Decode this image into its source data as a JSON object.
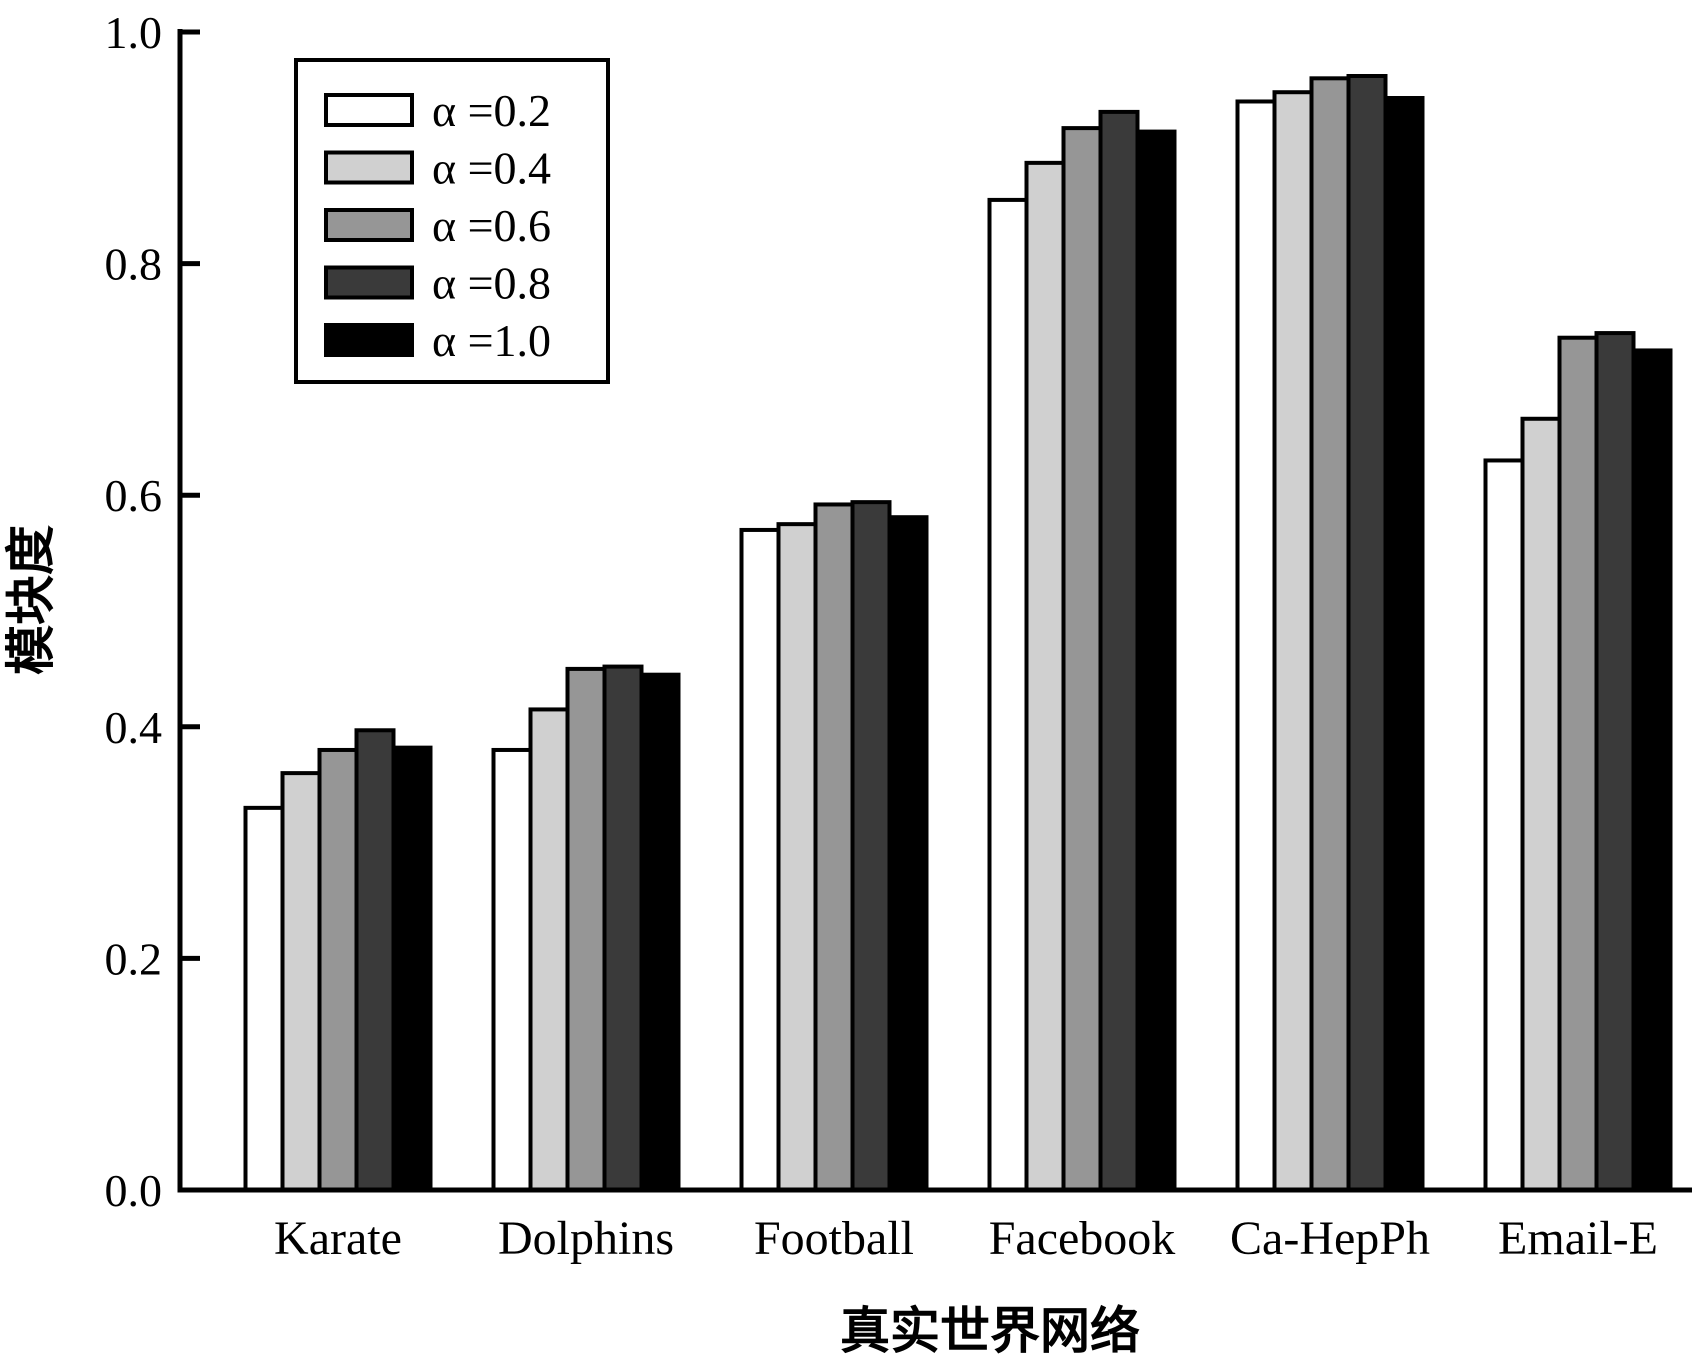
{
  "chart_data": {
    "type": "bar",
    "title": "",
    "xlabel": "真实世界网络",
    "ylabel": "模块度",
    "ylim": [
      0.0,
      1.0
    ],
    "yticks": [
      "0.0",
      "0.2",
      "0.4",
      "0.6",
      "0.8",
      "1.0"
    ],
    "categories": [
      "Karate",
      "Dolphins",
      "Football",
      "Facebook",
      "Ca-HepPh",
      "Email-E"
    ],
    "legend_position": "top-left",
    "grid": false,
    "series": [
      {
        "name": "α =0.2",
        "color": "#ffffff",
        "values": [
          0.33,
          0.38,
          0.57,
          0.855,
          0.94,
          0.63
        ]
      },
      {
        "name": "α =0.4",
        "color": "#d0d0d0",
        "values": [
          0.36,
          0.415,
          0.575,
          0.887,
          0.948,
          0.666
        ]
      },
      {
        "name": "α =0.6",
        "color": "#969696",
        "values": [
          0.38,
          0.45,
          0.592,
          0.917,
          0.96,
          0.736
        ]
      },
      {
        "name": "α =0.8",
        "color": "#3a3a3a",
        "values": [
          0.397,
          0.452,
          0.594,
          0.931,
          0.962,
          0.74
        ]
      },
      {
        "name": "α =1.0",
        "color": "#000000",
        "values": [
          0.382,
          0.445,
          0.581,
          0.914,
          0.943,
          0.725
        ]
      }
    ]
  }
}
